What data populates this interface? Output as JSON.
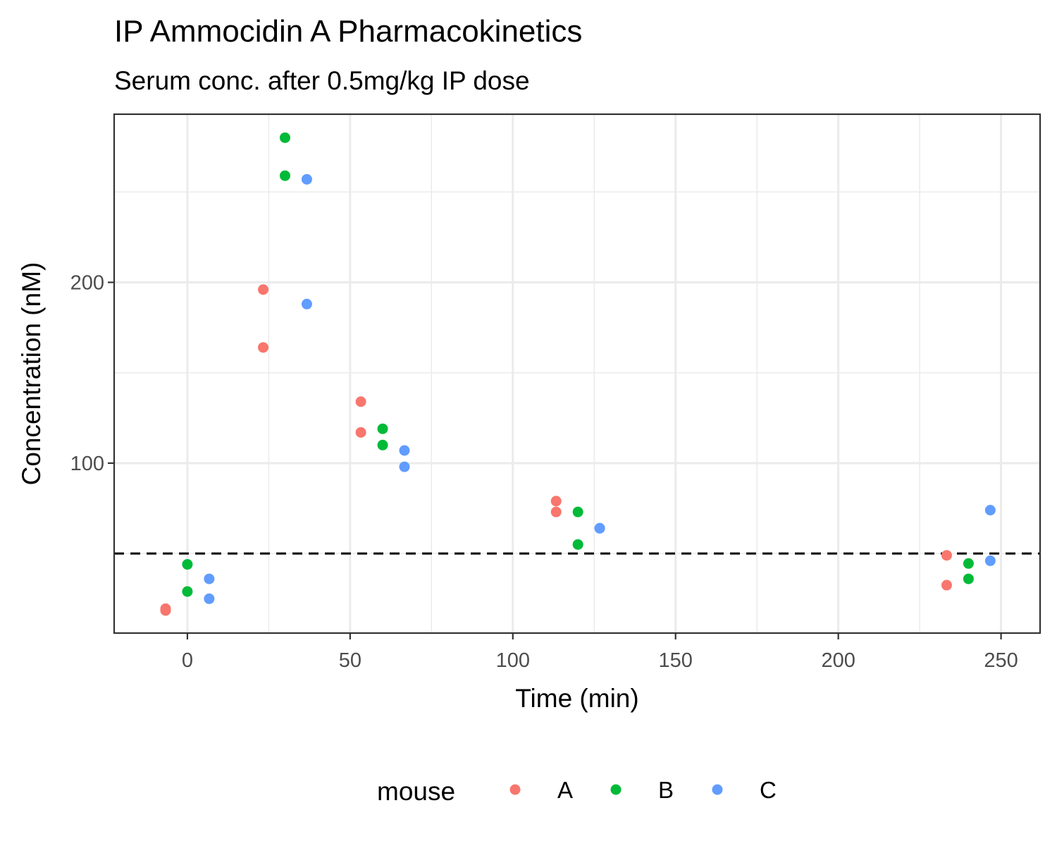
{
  "chart_data": {
    "type": "scatter",
    "title": "IP Ammocidin A Pharmacokinetics",
    "subtitle": "Serum conc. after 0.5mg/kg IP dose",
    "xlabel": "Time (min)",
    "ylabel": "Concentration (nM)",
    "xlim": [
      -22.5,
      262
    ],
    "ylim": [
      6,
      293
    ],
    "x_ticks": [
      0,
      50,
      100,
      150,
      200,
      250
    ],
    "y_ticks": [
      100,
      200
    ],
    "grid": true,
    "reference_line": {
      "y": 50,
      "style": "dashed",
      "color": "#000000"
    },
    "legend": {
      "title": "mouse",
      "position": "bottom"
    },
    "series": [
      {
        "name": "A",
        "color": "#F8766D",
        "points": [
          [
            -6.7,
            19.5
          ],
          [
            -6.7,
            18.5
          ],
          [
            23.3,
            196
          ],
          [
            23.3,
            164
          ],
          [
            53.3,
            134
          ],
          [
            53.3,
            117
          ],
          [
            113.3,
            79
          ],
          [
            113.3,
            73
          ],
          [
            233.3,
            49
          ],
          [
            233.3,
            32.5
          ]
        ]
      },
      {
        "name": "B",
        "color": "#00BA38",
        "points": [
          [
            0,
            44
          ],
          [
            0,
            29
          ],
          [
            30,
            280
          ],
          [
            30,
            259
          ],
          [
            60,
            119
          ],
          [
            60,
            110
          ],
          [
            120,
            73
          ],
          [
            120,
            55
          ],
          [
            240,
            44.5
          ],
          [
            240,
            36
          ]
        ]
      },
      {
        "name": "C",
        "color": "#619CFF",
        "points": [
          [
            6.7,
            36
          ],
          [
            6.7,
            25
          ],
          [
            36.7,
            257
          ],
          [
            36.7,
            188
          ],
          [
            66.7,
            107
          ],
          [
            66.7,
            98
          ],
          [
            126.7,
            64
          ],
          [
            126.7,
            64
          ],
          [
            246.7,
            74
          ],
          [
            246.7,
            46
          ]
        ]
      }
    ]
  }
}
